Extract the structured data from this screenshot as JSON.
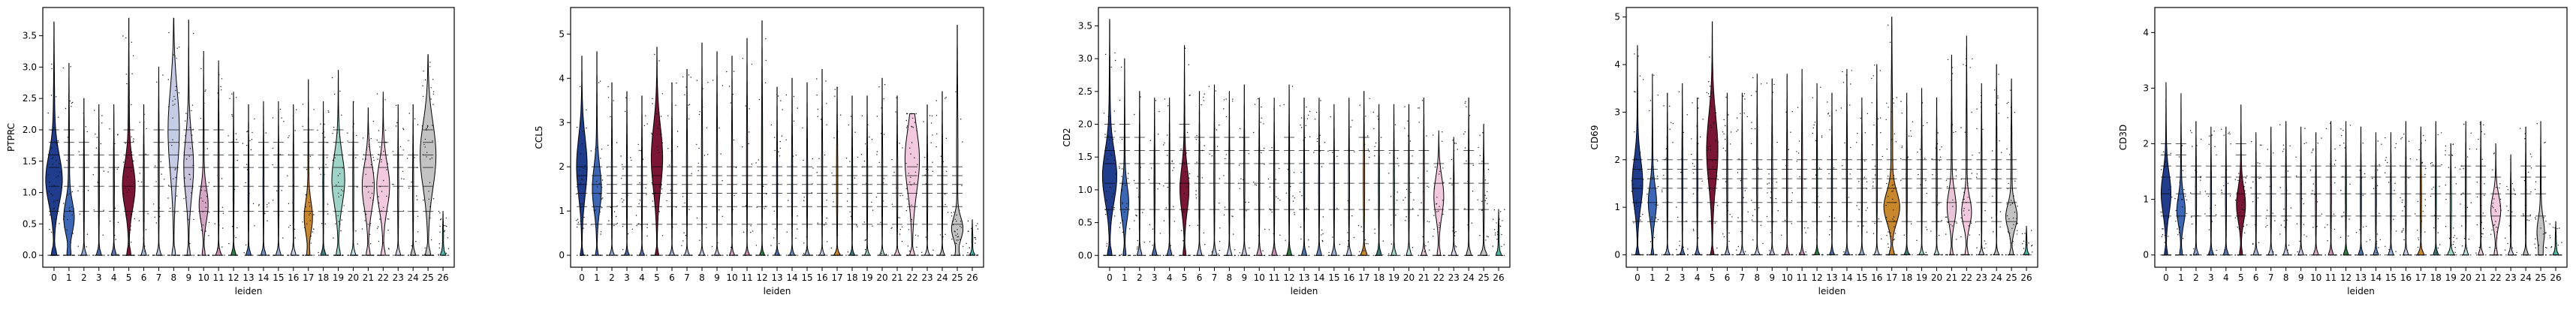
{
  "figure": {
    "colors": [
      "#1f3d8c",
      "#3b67b6",
      "#8fa8d6",
      "#4a6aa8",
      "#5e77b3",
      "#7a1535",
      "#a8b4d8",
      "#bcc4e0",
      "#c5cde6",
      "#c9c2dd",
      "#d6a5c6",
      "#c98fb5",
      "#2f7d45",
      "#4d73ad",
      "#6f8ec4",
      "#9db0d8",
      "#c4cde6",
      "#c9872b",
      "#3d7f7f",
      "#9ed4c8",
      "#bedfdc",
      "#e8c6d8",
      "#f2c9de",
      "#d9d2e6",
      "#bfbfbf",
      "#c3c3c3",
      "#49b8a8"
    ],
    "point_color": "#111111"
  },
  "chart_data": [
    {
      "type": "violin",
      "ylabel": "PTPRC",
      "xlabel": "leiden",
      "ylim": [
        -0.19,
        3.95
      ],
      "yticks": [
        "0.0",
        "0.5",
        "1.0",
        "1.5",
        "2.0",
        "2.5",
        "3.0",
        "3.5"
      ],
      "categories": [
        "0",
        "1",
        "2",
        "3",
        "4",
        "5",
        "6",
        "7",
        "8",
        "9",
        "10",
        "11",
        "12",
        "13",
        "14",
        "15",
        "16",
        "17",
        "18",
        "19",
        "20",
        "21",
        "22",
        "23",
        "24",
        "25",
        "26"
      ],
      "max": [
        3.72,
        3.06,
        2.5,
        2.4,
        2.4,
        3.78,
        2.4,
        3.0,
        3.78,
        3.75,
        3.25,
        3.1,
        2.6,
        2.4,
        2.45,
        2.45,
        2.4,
        2.8,
        2.45,
        2.95,
        2.45,
        2.35,
        2.6,
        2.4,
        2.4,
        3.2,
        0.7
      ],
      "mode": [
        1.2,
        0.6,
        0.0,
        0.0,
        0.0,
        1.1,
        0.0,
        0.0,
        2.0,
        1.4,
        0.8,
        0.0,
        0.0,
        0.0,
        0.0,
        0.0,
        0.0,
        0.6,
        0.0,
        1.2,
        0.0,
        1.1,
        1.1,
        0.0,
        0.0,
        1.6,
        0.0
      ],
      "width": [
        0.95,
        0.55,
        0.2,
        0.2,
        0.2,
        0.7,
        0.2,
        0.2,
        0.6,
        0.5,
        0.45,
        0.25,
        0.2,
        0.2,
        0.2,
        0.2,
        0.2,
        0.4,
        0.2,
        0.7,
        0.2,
        0.65,
        0.7,
        0.2,
        0.2,
        0.9,
        0.2
      ]
    },
    {
      "type": "violin",
      "ylabel": "CCL5",
      "xlabel": "leiden",
      "ylim": [
        -0.27,
        5.6
      ],
      "yticks": [
        "0",
        "1",
        "2",
        "3",
        "4",
        "5"
      ],
      "categories": [
        "0",
        "1",
        "2",
        "3",
        "4",
        "5",
        "6",
        "7",
        "8",
        "9",
        "10",
        "11",
        "12",
        "13",
        "14",
        "15",
        "16",
        "17",
        "18",
        "19",
        "20",
        "21",
        "22",
        "23",
        "24",
        "25",
        "26"
      ],
      "max": [
        4.5,
        4.6,
        3.9,
        3.7,
        3.6,
        4.7,
        3.9,
        4.2,
        4.8,
        4.6,
        4.5,
        4.9,
        5.3,
        3.8,
        4.0,
        3.9,
        4.2,
        3.8,
        3.6,
        3.6,
        4.0,
        3.6,
        3.2,
        3.4,
        3.7,
        5.2,
        0.8
      ],
      "mode": [
        2.0,
        1.5,
        0.0,
        0.0,
        0.0,
        2.2,
        0.0,
        0.0,
        0.0,
        0.0,
        0.0,
        0.0,
        0.0,
        0.0,
        0.0,
        0.0,
        0.0,
        0.0,
        0.0,
        0.0,
        0.0,
        0.0,
        2.2,
        0.0,
        0.0,
        0.6,
        0.0
      ],
      "width": [
        0.55,
        0.45,
        0.2,
        0.2,
        0.2,
        0.6,
        0.2,
        0.2,
        0.2,
        0.2,
        0.2,
        0.2,
        0.2,
        0.2,
        0.2,
        0.2,
        0.2,
        0.3,
        0.2,
        0.2,
        0.2,
        0.25,
        0.8,
        0.2,
        0.2,
        0.6,
        0.2
      ]
    },
    {
      "type": "violin",
      "ylabel": "CD2",
      "xlabel": "leiden",
      "ylim": [
        -0.18,
        3.78
      ],
      "yticks": [
        "0.0",
        "0.5",
        "1.0",
        "1.5",
        "2.0",
        "2.5",
        "3.0",
        "3.5"
      ],
      "categories": [
        "0",
        "1",
        "2",
        "3",
        "4",
        "5",
        "6",
        "7",
        "8",
        "9",
        "10",
        "11",
        "12",
        "13",
        "14",
        "15",
        "16",
        "17",
        "18",
        "19",
        "20",
        "21",
        "22",
        "23",
        "24",
        "25",
        "26"
      ],
      "max": [
        3.6,
        3.0,
        2.5,
        2.4,
        2.4,
        3.2,
        2.5,
        2.6,
        2.5,
        2.6,
        2.4,
        2.4,
        2.6,
        2.4,
        2.4,
        2.3,
        2.4,
        2.5,
        2.3,
        2.3,
        2.3,
        2.4,
        1.9,
        1.8,
        2.4,
        2.0,
        0.7
      ],
      "mode": [
        1.2,
        0.8,
        0.0,
        0.0,
        0.0,
        1.0,
        0.0,
        0.0,
        0.0,
        0.0,
        0.0,
        0.0,
        0.0,
        0.0,
        0.0,
        0.0,
        0.0,
        0.0,
        0.0,
        0.0,
        0.0,
        0.0,
        0.9,
        0.0,
        0.0,
        0.0,
        0.0
      ],
      "width": [
        0.8,
        0.4,
        0.2,
        0.2,
        0.2,
        0.45,
        0.2,
        0.2,
        0.2,
        0.2,
        0.2,
        0.2,
        0.2,
        0.2,
        0.2,
        0.2,
        0.2,
        0.3,
        0.2,
        0.2,
        0.2,
        0.2,
        0.5,
        0.2,
        0.2,
        0.3,
        0.2
      ]
    },
    {
      "type": "violin",
      "ylabel": "CD69",
      "xlabel": "leiden",
      "ylim": [
        -0.26,
        5.2
      ],
      "yticks": [
        "0",
        "1",
        "2",
        "3",
        "4",
        "5"
      ],
      "categories": [
        "0",
        "1",
        "2",
        "3",
        "4",
        "5",
        "6",
        "7",
        "8",
        "9",
        "10",
        "11",
        "12",
        "13",
        "14",
        "15",
        "16",
        "17",
        "18",
        "19",
        "20",
        "21",
        "22",
        "23",
        "24",
        "25",
        "26"
      ],
      "max": [
        4.4,
        3.8,
        3.4,
        3.6,
        3.3,
        4.9,
        3.4,
        3.4,
        3.8,
        3.7,
        3.8,
        3.9,
        3.6,
        3.4,
        3.9,
        3.3,
        4.0,
        5.0,
        3.4,
        3.5,
        3.3,
        4.2,
        4.6,
        3.6,
        4.0,
        3.7,
        0.6
      ],
      "mode": [
        1.5,
        1.1,
        0.0,
        0.0,
        0.0,
        2.2,
        0.0,
        0.0,
        0.0,
        0.0,
        0.0,
        0.0,
        0.0,
        0.0,
        0.0,
        0.0,
        0.0,
        1.0,
        0.0,
        0.0,
        0.0,
        1.0,
        0.9,
        0.0,
        0.0,
        0.8,
        0.0
      ],
      "width": [
        0.55,
        0.4,
        0.2,
        0.2,
        0.2,
        0.6,
        0.2,
        0.2,
        0.2,
        0.2,
        0.2,
        0.2,
        0.2,
        0.2,
        0.2,
        0.2,
        0.2,
        0.9,
        0.2,
        0.2,
        0.2,
        0.45,
        0.5,
        0.2,
        0.2,
        0.6,
        0.2
      ]
    },
    {
      "type": "violin",
      "ylabel": "CD3D",
      "xlabel": "leiden",
      "ylim": [
        -0.22,
        4.45
      ],
      "yticks": [
        "0",
        "1",
        "2",
        "3",
        "4"
      ],
      "categories": [
        "0",
        "1",
        "2",
        "3",
        "4",
        "5",
        "6",
        "7",
        "8",
        "9",
        "10",
        "11",
        "12",
        "13",
        "14",
        "15",
        "16",
        "17",
        "18",
        "19",
        "20",
        "21",
        "22",
        "23",
        "24",
        "25",
        "26"
      ],
      "max": [
        3.1,
        2.9,
        2.4,
        2.3,
        2.3,
        2.7,
        2.2,
        2.3,
        2.4,
        2.3,
        2.2,
        2.4,
        2.4,
        2.3,
        2.2,
        2.2,
        2.4,
        2.3,
        2.4,
        2.0,
        2.4,
        2.4,
        2.0,
        1.8,
        2.3,
        2.4,
        0.6
      ],
      "mode": [
        1.1,
        0.8,
        0.0,
        0.0,
        0.0,
        0.9,
        0.0,
        0.0,
        0.0,
        0.0,
        0.0,
        0.0,
        0.0,
        0.0,
        0.0,
        0.0,
        0.0,
        0.0,
        0.0,
        0.0,
        0.0,
        0.0,
        0.8,
        0.0,
        0.0,
        0.4,
        0.0
      ],
      "width": [
        0.5,
        0.4,
        0.2,
        0.2,
        0.2,
        0.45,
        0.2,
        0.2,
        0.2,
        0.2,
        0.2,
        0.2,
        0.2,
        0.2,
        0.2,
        0.2,
        0.2,
        0.3,
        0.2,
        0.3,
        0.2,
        0.2,
        0.5,
        0.2,
        0.2,
        0.35,
        0.2
      ]
    }
  ]
}
